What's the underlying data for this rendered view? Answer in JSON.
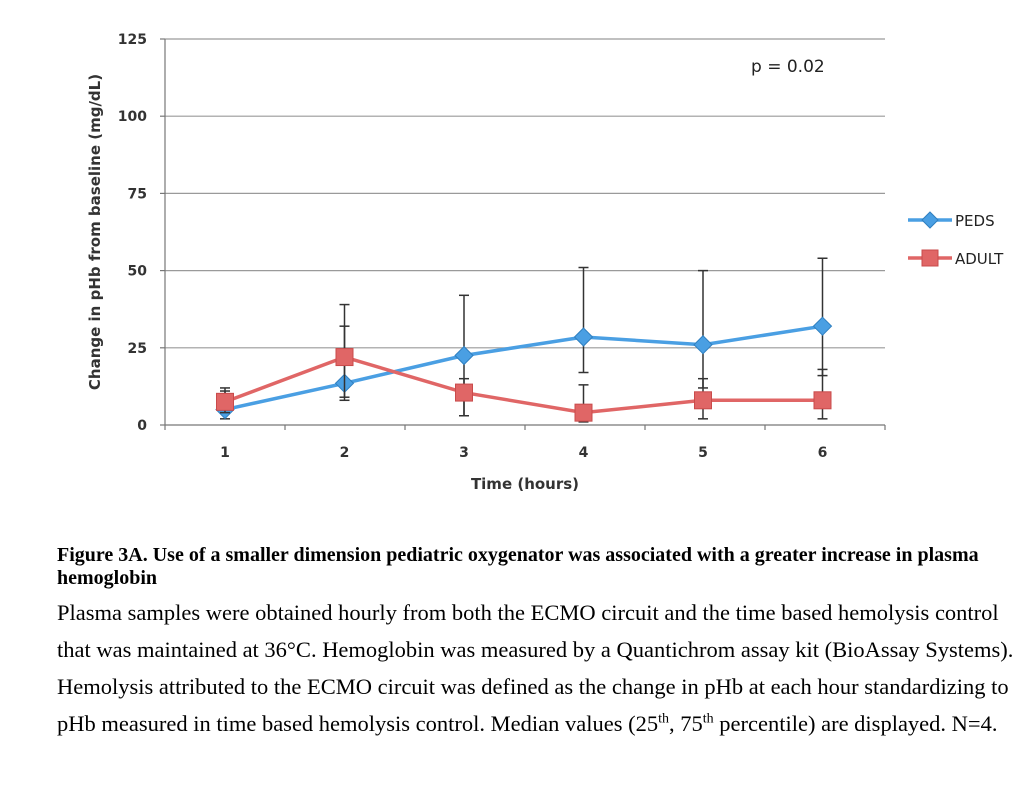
{
  "chart_data": {
    "type": "line",
    "title": "",
    "xlabel": "Time (hours)",
    "ylabel": "Change in pHb from baseline (mg/dL)",
    "x": [
      1,
      2,
      3,
      4,
      5,
      6
    ],
    "xticks": [
      "1",
      "2",
      "3",
      "4",
      "5",
      "6"
    ],
    "yticks": [
      "0",
      "25",
      "50",
      "75",
      "100",
      "125"
    ],
    "ylim": [
      0,
      125
    ],
    "grid": "horizontal",
    "legend": "right",
    "annotation": "p = 0.02",
    "series": [
      {
        "name": "PEDS",
        "color": "#4a9fe3",
        "marker": "diamond",
        "values": [
          5,
          13.5,
          22.5,
          28.5,
          26,
          32
        ],
        "err_low": [
          2,
          8,
          3,
          17,
          12,
          16
        ],
        "err_high": [
          11,
          32,
          42,
          51,
          50,
          54
        ]
      },
      {
        "name": "ADULT",
        "color": "#e06666",
        "marker": "square",
        "values": [
          7.5,
          22,
          10.5,
          4,
          8,
          8
        ],
        "err_low": [
          4,
          9,
          3,
          1,
          2,
          2
        ],
        "err_high": [
          12,
          39,
          15,
          13,
          15,
          18
        ]
      }
    ]
  },
  "caption": {
    "title": "Figure 3A. Use of a smaller dimension pediatric oxygenator was associated with a greater increase in plasma hemoglobin",
    "body_part1": "Plasma samples were obtained hourly from both the ECMO circuit and the time based hemolysis control that was maintained at 36°C. Hemoglobin was measured by a Quantichrom assay kit (BioAssay Systems). Hemolysis attributed to the ECMO circuit was defined as the change in pHb at each hour standardizing to pHb measured in time based hemolysis control. Median values (25",
    "sup1": "th",
    "body_part2": ", 75",
    "sup2": "th",
    "body_part3": " percentile) are displayed. N=4."
  }
}
